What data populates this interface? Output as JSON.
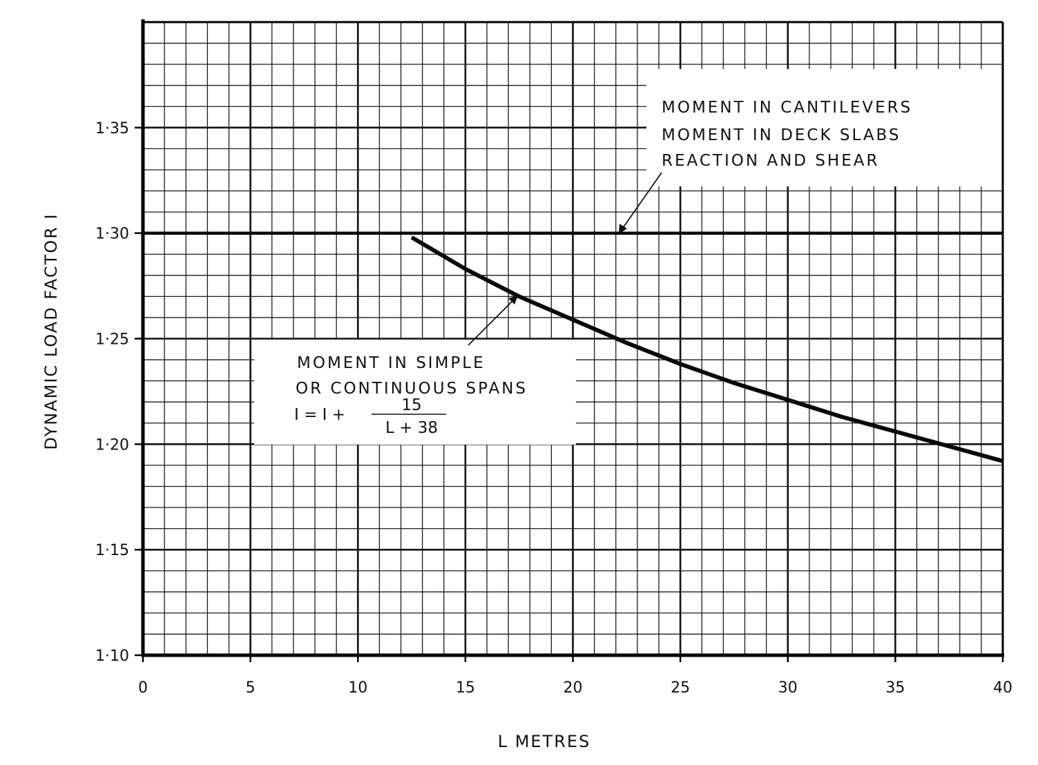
{
  "chart_data": {
    "type": "line",
    "title": "",
    "xlabel": "L    METRES",
    "ylabel": "DYNAMIC LOAD FACTOR I",
    "xlim": [
      0,
      40
    ],
    "ylim": [
      1.1,
      1.4
    ],
    "x_ticks": [
      0,
      5,
      10,
      15,
      20,
      25,
      30,
      35,
      40
    ],
    "x_tick_labels": [
      "0",
      "5",
      "10",
      "15",
      "20",
      "25",
      "30",
      "35",
      "40"
    ],
    "y_ticks": [
      1.1,
      1.15,
      1.2,
      1.25,
      1.3,
      1.35
    ],
    "y_tick_labels": [
      "1·10",
      "1·15",
      "1·20",
      "1·25",
      "1·30",
      "1·35"
    ],
    "grid": true,
    "x_minor_step": 1,
    "y_minor_step": 0.01,
    "series": [
      {
        "x": [
          0,
          40
        ],
        "y": [
          1.3,
          1.3
        ]
      },
      {
        "formula": "I = 1 + 15/(L + 38)",
        "x": [
          12.5,
          15,
          17.5,
          20,
          22.5,
          25,
          27.5,
          30,
          32.5,
          35,
          37.5,
          40
        ],
        "y": [
          1.298,
          1.283,
          1.27,
          1.259,
          1.248,
          1.238,
          1.229,
          1.221,
          1.213,
          1.206,
          1.199,
          1.192
        ]
      }
    ],
    "annotations": [
      {
        "lines": [
          "MOMENT  IN  CANTILEVERS",
          "MOMENT  IN  DECK  SLABS",
          "REACTION  AND  SHEAR"
        ],
        "points_to_x": 22,
        "points_to_y": 1.3
      },
      {
        "lines": [
          "MOMENT  IN  SIMPLE",
          "OR  CONTINUOUS  SPANS"
        ],
        "formula_lhs": "I  = I  +",
        "formula_numerator": "15",
        "formula_denominator": "L + 38",
        "points_to_x": 17.5,
        "points_to_y": 1.27
      }
    ]
  }
}
